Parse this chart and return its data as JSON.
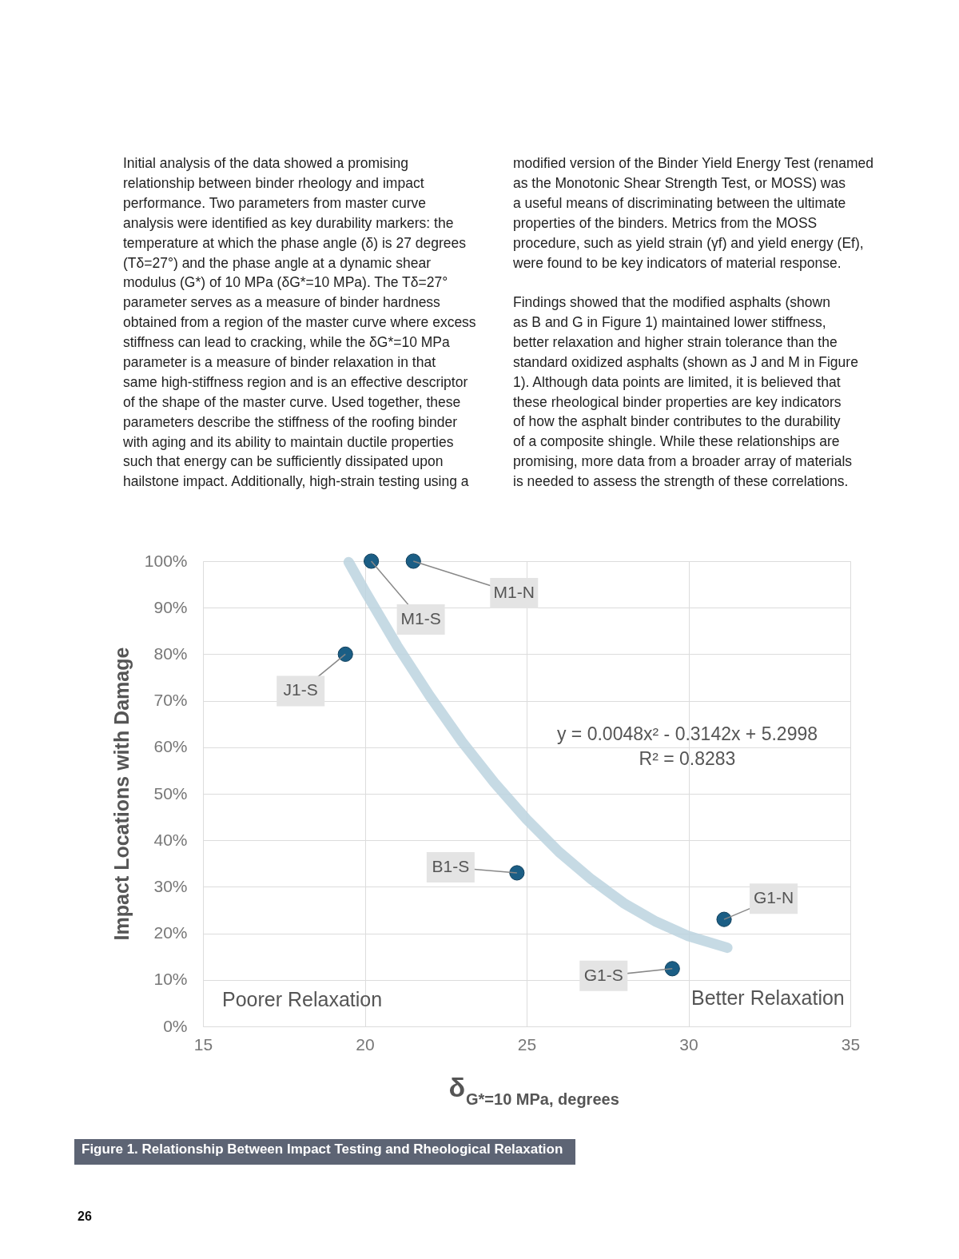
{
  "chart_data": {
    "type": "scatter",
    "xlabel": "δ$_{G*=10 MPa}$, degrees",
    "ylabel": "Impact Locations with Damage",
    "xlim": [
      15,
      35
    ],
    "xticks": [
      15,
      20,
      25,
      30,
      35
    ],
    "ylim": [
      0,
      100
    ],
    "yticks": [
      {
        "value": 0,
        "label": "0%"
      },
      {
        "value": 10,
        "label": "10%"
      },
      {
        "value": 20,
        "label": "20%"
      },
      {
        "value": 30,
        "label": "30%"
      },
      {
        "value": 40,
        "label": "40%"
      },
      {
        "value": 50,
        "label": "50%"
      },
      {
        "value": 60,
        "label": "60%"
      },
      {
        "value": 70,
        "label": "70%"
      },
      {
        "value": 80,
        "label": "80%"
      },
      {
        "value": 90,
        "label": "90%"
      },
      {
        "value": 100,
        "label": "100%"
      }
    ],
    "grid": true,
    "series": [
      {
        "type": "line",
        "color": "#bcd3df",
        "line_style": "solid",
        "marker": "none",
        "x": [
          19.5,
          20,
          21,
          22,
          23,
          24,
          25,
          26,
          27,
          28,
          29,
          30,
          31.2
        ],
        "values": [
          99.8,
          93.6,
          81.8,
          71.1,
          61.2,
          52.4,
          44.5,
          37.5,
          31.6,
          26.5,
          22.5,
          19.4,
          16.9
        ]
      },
      {
        "color": "#1b5e85",
        "marker": "circle",
        "x": [
          20.2,
          21.5,
          19.4,
          24.7,
          31.1,
          29.5
        ],
        "values": [
          100,
          100,
          80,
          33,
          23,
          12.4
        ]
      }
    ],
    "annotations": [
      "Initial analysis of the data showed a promising\nrelationship between binder rheology and impact\nperformance. Two parameters from master curve\nanalysis were identified as key durability markers: the\ntemperature at which the phase angle (δ) is 27 degrees\n(Tδ=27°) and the phase angle at a dynamic shear\nmodulus (G*) of 10 MPa (δG*=10 MPa).  The Tδ=27°\nparameter serves as a measure of binder hardness\nobtained from a region of the master curve where excess\nstiffness can lead to cracking, while the δG*=10 MPa\nparameter is a measure of binder relaxation in that\nsame high-stiffness region and is an effective descriptor\nof the shape of the master curve. Used together, these\nparameters describe the stiffness of the roofing binder\nwith aging and its ability to maintain ductile properties\nsuch that energy can be sufficiently dissipated upon\nhailstone impact. Additionally, high-strain testing using a",
      "modified version of the Binder Yield Energy Test (renamed\nas the Monotonic Shear Strength Test, or MOSS) was\na useful means of discriminating between the ultimate\nproperties of the binders. Metrics from the MOSS\nprocedure, such as yield strain (γf) and yield energy (Ef),\nwere found to be key indicators of material response.",
      "Findings showed that the modified asphalts (shown\nas B and G in Figure 1) maintained lower stiffness,\nbetter relaxation and higher strain tolerance than the\nstandard oxidized asphalts (shown as J and M in Figure\n1). Although data points are limited, it is believed that\nthese rheological binder properties are key indicators\nof how the asphalt binder contributes to the durability\nof a composite shingle. While these relationships are\npromising, more data from a broader array of materials\nis needed to assess the strength of these correlations.",
      "y = 0.0048x² - 0.3142x + 5.2998",
      "R² = 0.8283",
      "Poorer Relaxation",
      "Better Relaxation",
      "Figure 1. Relationship Between Impact Testing and Rheological Relaxation",
      "26",
      {
        "text": "M1-S",
        "x": 20.2,
        "y": 100
      },
      {
        "text": "M1-N",
        "x": 21.5,
        "y": 100
      },
      {
        "text": "J1-S",
        "x": 19.4,
        "y": 80
      },
      {
        "text": "B1-S",
        "x": 24.7,
        "y": 33
      },
      {
        "text": "G1-N",
        "x": 31.1,
        "y": 23
      },
      {
        "text": "G1-S",
        "x": 29.5,
        "y": 12.4
      }
    ]
  }
}
